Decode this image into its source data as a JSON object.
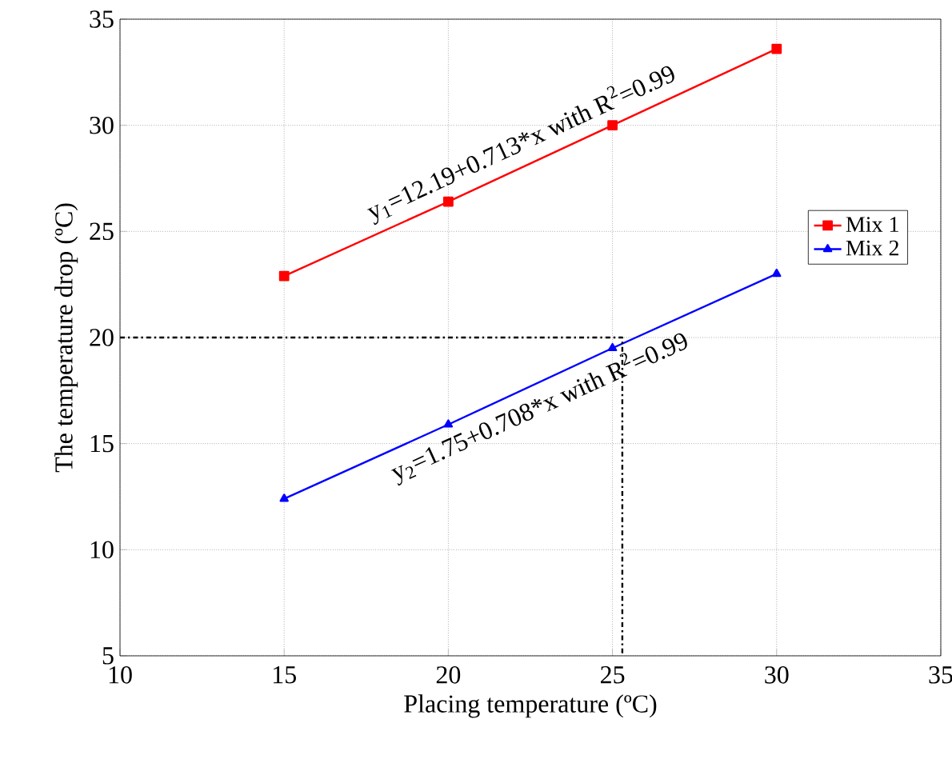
{
  "chart_data": {
    "type": "line",
    "xlabel": "Placing temperature (ºC)",
    "ylabel": "The temperature drop (ºC)",
    "xlim": [
      10,
      35
    ],
    "ylim": [
      5,
      35
    ],
    "xticks": [
      10,
      15,
      20,
      25,
      30,
      35
    ],
    "yticks": [
      5,
      10,
      15,
      20,
      25,
      30,
      35
    ],
    "grid": true,
    "legend": "right",
    "series": [
      {
        "name": "Mix 1",
        "color": "#ff0000",
        "marker": "square",
        "x": [
          15,
          20,
          25,
          30
        ],
        "values": [
          22.9,
          26.4,
          30.0,
          33.6
        ]
      },
      {
        "name": "Mix 2",
        "color": "#0000ff",
        "marker": "triangle",
        "x": [
          15,
          20,
          25,
          30
        ],
        "values": [
          12.4,
          15.9,
          19.5,
          23.0
        ]
      },
      {
        "color": "#000000",
        "marker": "none",
        "line_style": "dashed",
        "x": [
          10,
          25.3,
          25.3
        ],
        "values": [
          20,
          20,
          5
        ]
      }
    ],
    "annotations": [
      "y$_{1}$=12.19+0.713*x with R$^{2}$=0.99",
      "y$_{2}$=1.75+0.708*x with R$^{2}$=0.99"
    ]
  }
}
